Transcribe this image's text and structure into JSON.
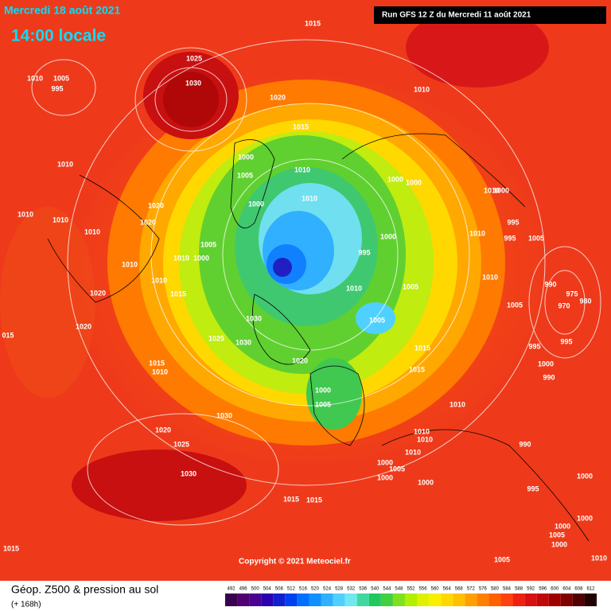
{
  "header": {
    "date": "Mercredi 18 août 2021",
    "time": "14:00 locale",
    "run": "Run GFS 12 Z du Mercredi 11 août 2021"
  },
  "isobar_labels": [
    "1015",
    "1025",
    "1030",
    "1010",
    "1005",
    "995",
    "1020",
    "1015",
    "1010",
    "1000",
    "1005",
    "1010",
    "1010",
    "1000",
    "1000",
    "1010",
    "1000",
    "1010",
    "1000",
    "1020",
    "1010",
    "1010",
    "1020",
    "1010",
    "995",
    "995",
    "1005",
    "1000",
    "1010",
    "1005",
    "995",
    "1010",
    "1000",
    "1010",
    "1010",
    "1010",
    "1010",
    "1005",
    "990",
    "975",
    "970",
    "980",
    "1015",
    "1020",
    "1005",
    "1030",
    "1005",
    "1020",
    "1025",
    "1030",
    "015",
    "995",
    "995",
    "1015",
    "1020",
    "1015",
    "1010",
    "1000",
    "1015",
    "990",
    "1000",
    "1005",
    "1010",
    "1030",
    "1020",
    "1010",
    "1010",
    "1025",
    "990",
    "1010",
    "1000",
    "1005",
    "1000",
    "1030",
    "1000",
    "995",
    "1015",
    "1015",
    "1000",
    "1000",
    "1000",
    "1005",
    "1000",
    "1015",
    "1005",
    "1010"
  ],
  "copyright": "Copyright © 2021 Meteociel.fr",
  "legend": {
    "title": "Géop. Z500 & pression au sol",
    "subtitle": "(+ 168h)",
    "scale": [
      492,
      496,
      500,
      504,
      508,
      512,
      516,
      520,
      524,
      528,
      532,
      536,
      540,
      544,
      548,
      552,
      556,
      560,
      564,
      568,
      572,
      576,
      580,
      584,
      588,
      592,
      596,
      600,
      604,
      608,
      612
    ],
    "colors": [
      "#3a0050",
      "#50006e",
      "#4a0090",
      "#2a00b0",
      "#1020d0",
      "#0040f0",
      "#0070ff",
      "#1090ff",
      "#30b0ff",
      "#50d0ff",
      "#70e8f0",
      "#40d8a0",
      "#20c860",
      "#40d040",
      "#80e020",
      "#b0f000",
      "#e0f000",
      "#f8f000",
      "#ffd800",
      "#ffc000",
      "#ffa000",
      "#ff8000",
      "#ff6000",
      "#ff4010",
      "#f02010",
      "#d81010",
      "#c00808",
      "#a00000",
      "#800000",
      "#500000",
      "#200000"
    ]
  }
}
